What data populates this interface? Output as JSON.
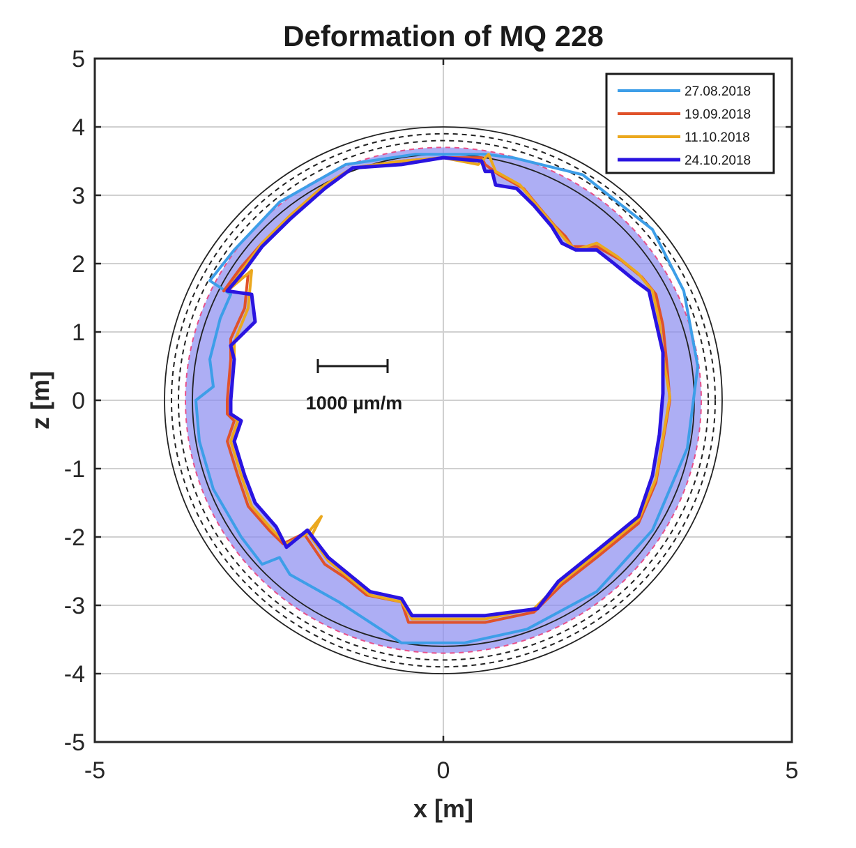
{
  "chart_data": {
    "type": "line",
    "title": "Deformation of MQ 228",
    "xlabel": "x [m]",
    "ylabel": "z [m]",
    "xlim": [
      -5,
      5
    ],
    "ylim": [
      -5,
      5
    ],
    "xticks": [
      "-5",
      "0",
      "5"
    ],
    "yticks": [
      "5",
      "4",
      "3",
      "2",
      "1",
      "0",
      "-1",
      "-2",
      "-3",
      "-4",
      "-5"
    ],
    "grid": true,
    "legend_position": "top-right",
    "scale_bar": {
      "label": "1000 µm/m",
      "x_start": -1.8,
      "x_end": -0.8,
      "z": 0.5
    },
    "reference_circles": [
      {
        "style": "solid",
        "color": "#222222",
        "radius": 4.0
      },
      {
        "style": "dashed",
        "color": "#222222",
        "radius": 3.9
      },
      {
        "style": "dashed",
        "color": "#222222",
        "radius": 3.8
      },
      {
        "style": "dashed",
        "color": "#e8508a",
        "radius": 3.7
      },
      {
        "style": "solid",
        "color": "#222222",
        "radius": 3.6
      }
    ],
    "band": {
      "color": "#8a8cf0",
      "outer_radius": 3.7
    },
    "series": [
      {
        "name": "27.08.2018",
        "color": "#3d9ee8",
        "points": [
          [
            -3.35,
            1.75
          ],
          [
            -3.05,
            1.55
          ],
          [
            -3.2,
            1.2
          ],
          [
            -3.35,
            0.6
          ],
          [
            -3.3,
            0.2
          ],
          [
            -3.55,
            0.0
          ],
          [
            -3.5,
            -0.6
          ],
          [
            -3.3,
            -1.3
          ],
          [
            -2.9,
            -2.0
          ],
          [
            -2.6,
            -2.4
          ],
          [
            -2.35,
            -2.3
          ],
          [
            -2.2,
            -2.55
          ],
          [
            -1.5,
            -2.95
          ],
          [
            -0.6,
            -3.55
          ],
          [
            0.3,
            -3.55
          ],
          [
            1.2,
            -3.35
          ],
          [
            2.2,
            -2.8
          ],
          [
            3.0,
            -1.9
          ],
          [
            3.5,
            -0.7
          ],
          [
            3.65,
            0.5
          ],
          [
            3.45,
            1.6
          ],
          [
            3.0,
            2.5
          ],
          [
            2.0,
            3.3
          ],
          [
            1.0,
            3.55
          ],
          [
            0.6,
            3.6
          ],
          [
            -0.4,
            3.6
          ],
          [
            -1.4,
            3.45
          ],
          [
            -2.35,
            2.9
          ],
          [
            -3.0,
            2.2
          ],
          [
            -3.35,
            1.75
          ]
        ]
      },
      {
        "name": "19.09.2018",
        "color": "#e0522b",
        "points": [
          [
            -3.15,
            1.6
          ],
          [
            -2.8,
            1.85
          ],
          [
            -2.85,
            1.35
          ],
          [
            -3.05,
            0.9
          ],
          [
            -3.05,
            0.6
          ],
          [
            -3.1,
            0.0
          ],
          [
            -3.1,
            -0.2
          ],
          [
            -3.0,
            -0.3
          ],
          [
            -3.1,
            -0.6
          ],
          [
            -2.95,
            -1.1
          ],
          [
            -2.8,
            -1.55
          ],
          [
            -2.5,
            -1.9
          ],
          [
            -2.3,
            -2.1
          ],
          [
            -2.0,
            -1.95
          ],
          [
            -1.7,
            -2.4
          ],
          [
            -1.4,
            -2.6
          ],
          [
            -1.1,
            -2.85
          ],
          [
            -0.6,
            -2.95
          ],
          [
            -0.5,
            -3.25
          ],
          [
            0.0,
            -3.25
          ],
          [
            0.6,
            -3.25
          ],
          [
            1.3,
            -3.1
          ],
          [
            1.7,
            -2.7
          ],
          [
            2.2,
            -2.3
          ],
          [
            2.8,
            -1.8
          ],
          [
            3.05,
            -1.2
          ],
          [
            3.15,
            -0.6
          ],
          [
            3.25,
            0.0
          ],
          [
            3.2,
            0.6
          ],
          [
            3.15,
            1.1
          ],
          [
            3.05,
            1.55
          ],
          [
            2.85,
            1.8
          ],
          [
            2.55,
            2.05
          ],
          [
            2.2,
            2.25
          ],
          [
            1.85,
            2.25
          ],
          [
            1.75,
            2.4
          ],
          [
            1.6,
            2.55
          ],
          [
            1.35,
            2.85
          ],
          [
            1.15,
            3.1
          ],
          [
            0.8,
            3.3
          ],
          [
            0.6,
            3.45
          ],
          [
            0.55,
            3.55
          ],
          [
            0.0,
            3.55
          ],
          [
            -0.6,
            3.5
          ],
          [
            -1.3,
            3.4
          ],
          [
            -1.7,
            3.15
          ],
          [
            -2.2,
            2.7
          ],
          [
            -2.6,
            2.3
          ],
          [
            -2.9,
            1.95
          ],
          [
            -3.15,
            1.6
          ]
        ]
      },
      {
        "name": "11.10.2018",
        "color": "#eba81e",
        "points": [
          [
            -3.1,
            1.6
          ],
          [
            -2.75,
            1.9
          ],
          [
            -2.8,
            1.35
          ],
          [
            -3.0,
            0.85
          ],
          [
            -3.0,
            0.6
          ],
          [
            -3.05,
            0.0
          ],
          [
            -3.05,
            -0.2
          ],
          [
            -2.95,
            -0.3
          ],
          [
            -3.05,
            -0.6
          ],
          [
            -2.9,
            -1.1
          ],
          [
            -2.75,
            -1.55
          ],
          [
            -2.45,
            -1.9
          ],
          [
            -2.25,
            -2.1
          ],
          [
            -1.95,
            -1.95
          ],
          [
            -1.75,
            -1.7
          ],
          [
            -1.9,
            -2.0
          ],
          [
            -1.65,
            -2.35
          ],
          [
            -1.35,
            -2.6
          ],
          [
            -1.05,
            -2.85
          ],
          [
            -0.6,
            -2.95
          ],
          [
            -0.45,
            -3.2
          ],
          [
            0.0,
            -3.2
          ],
          [
            0.6,
            -3.2
          ],
          [
            1.3,
            -3.05
          ],
          [
            1.7,
            -2.65
          ],
          [
            2.2,
            -2.25
          ],
          [
            2.8,
            -1.75
          ],
          [
            3.05,
            -1.15
          ],
          [
            3.15,
            -0.55
          ],
          [
            3.25,
            0.05
          ],
          [
            3.15,
            0.65
          ],
          [
            3.1,
            1.15
          ],
          [
            3.0,
            1.6
          ],
          [
            2.8,
            1.85
          ],
          [
            2.5,
            2.1
          ],
          [
            2.2,
            2.3
          ],
          [
            1.9,
            2.2
          ],
          [
            1.75,
            2.35
          ],
          [
            1.55,
            2.6
          ],
          [
            1.3,
            2.9
          ],
          [
            1.1,
            3.15
          ],
          [
            0.75,
            3.35
          ],
          [
            0.65,
            3.6
          ],
          [
            0.5,
            3.45
          ],
          [
            0.0,
            3.55
          ],
          [
            -0.6,
            3.5
          ],
          [
            -1.3,
            3.4
          ],
          [
            -1.7,
            3.15
          ],
          [
            -2.2,
            2.7
          ],
          [
            -2.6,
            2.3
          ],
          [
            -2.85,
            1.95
          ],
          [
            -3.1,
            1.6
          ]
        ]
      },
      {
        "name": "24.10.2018",
        "color": "#2a14e0",
        "points": [
          [
            -3.1,
            1.6
          ],
          [
            -2.75,
            1.55
          ],
          [
            -2.7,
            1.15
          ],
          [
            -3.05,
            0.8
          ],
          [
            -3.0,
            0.6
          ],
          [
            -3.05,
            0.0
          ],
          [
            -3.05,
            -0.2
          ],
          [
            -2.9,
            -0.3
          ],
          [
            -3.0,
            -0.6
          ],
          [
            -2.85,
            -1.1
          ],
          [
            -2.7,
            -1.5
          ],
          [
            -2.4,
            -1.85
          ],
          [
            -2.25,
            -2.15
          ],
          [
            -1.95,
            -1.9
          ],
          [
            -1.65,
            -2.3
          ],
          [
            -1.35,
            -2.55
          ],
          [
            -1.05,
            -2.8
          ],
          [
            -0.6,
            -2.9
          ],
          [
            -0.45,
            -3.15
          ],
          [
            0.0,
            -3.15
          ],
          [
            0.6,
            -3.15
          ],
          [
            1.35,
            -3.05
          ],
          [
            1.65,
            -2.65
          ],
          [
            2.2,
            -2.2
          ],
          [
            2.8,
            -1.7
          ],
          [
            3.0,
            -1.1
          ],
          [
            3.1,
            -0.5
          ],
          [
            3.15,
            0.1
          ],
          [
            3.15,
            0.7
          ],
          [
            3.05,
            1.15
          ],
          [
            2.95,
            1.6
          ],
          [
            2.75,
            1.75
          ],
          [
            2.45,
            2.0
          ],
          [
            2.2,
            2.2
          ],
          [
            1.9,
            2.2
          ],
          [
            1.7,
            2.3
          ],
          [
            1.55,
            2.55
          ],
          [
            1.3,
            2.85
          ],
          [
            1.05,
            3.1
          ],
          [
            0.75,
            3.15
          ],
          [
            0.7,
            3.35
          ],
          [
            0.6,
            3.35
          ],
          [
            0.55,
            3.5
          ],
          [
            0.0,
            3.55
          ],
          [
            -0.6,
            3.45
          ],
          [
            -1.3,
            3.4
          ],
          [
            -1.7,
            3.1
          ],
          [
            -2.2,
            2.65
          ],
          [
            -2.6,
            2.25
          ],
          [
            -2.85,
            1.9
          ],
          [
            -3.1,
            1.6
          ]
        ]
      }
    ]
  }
}
